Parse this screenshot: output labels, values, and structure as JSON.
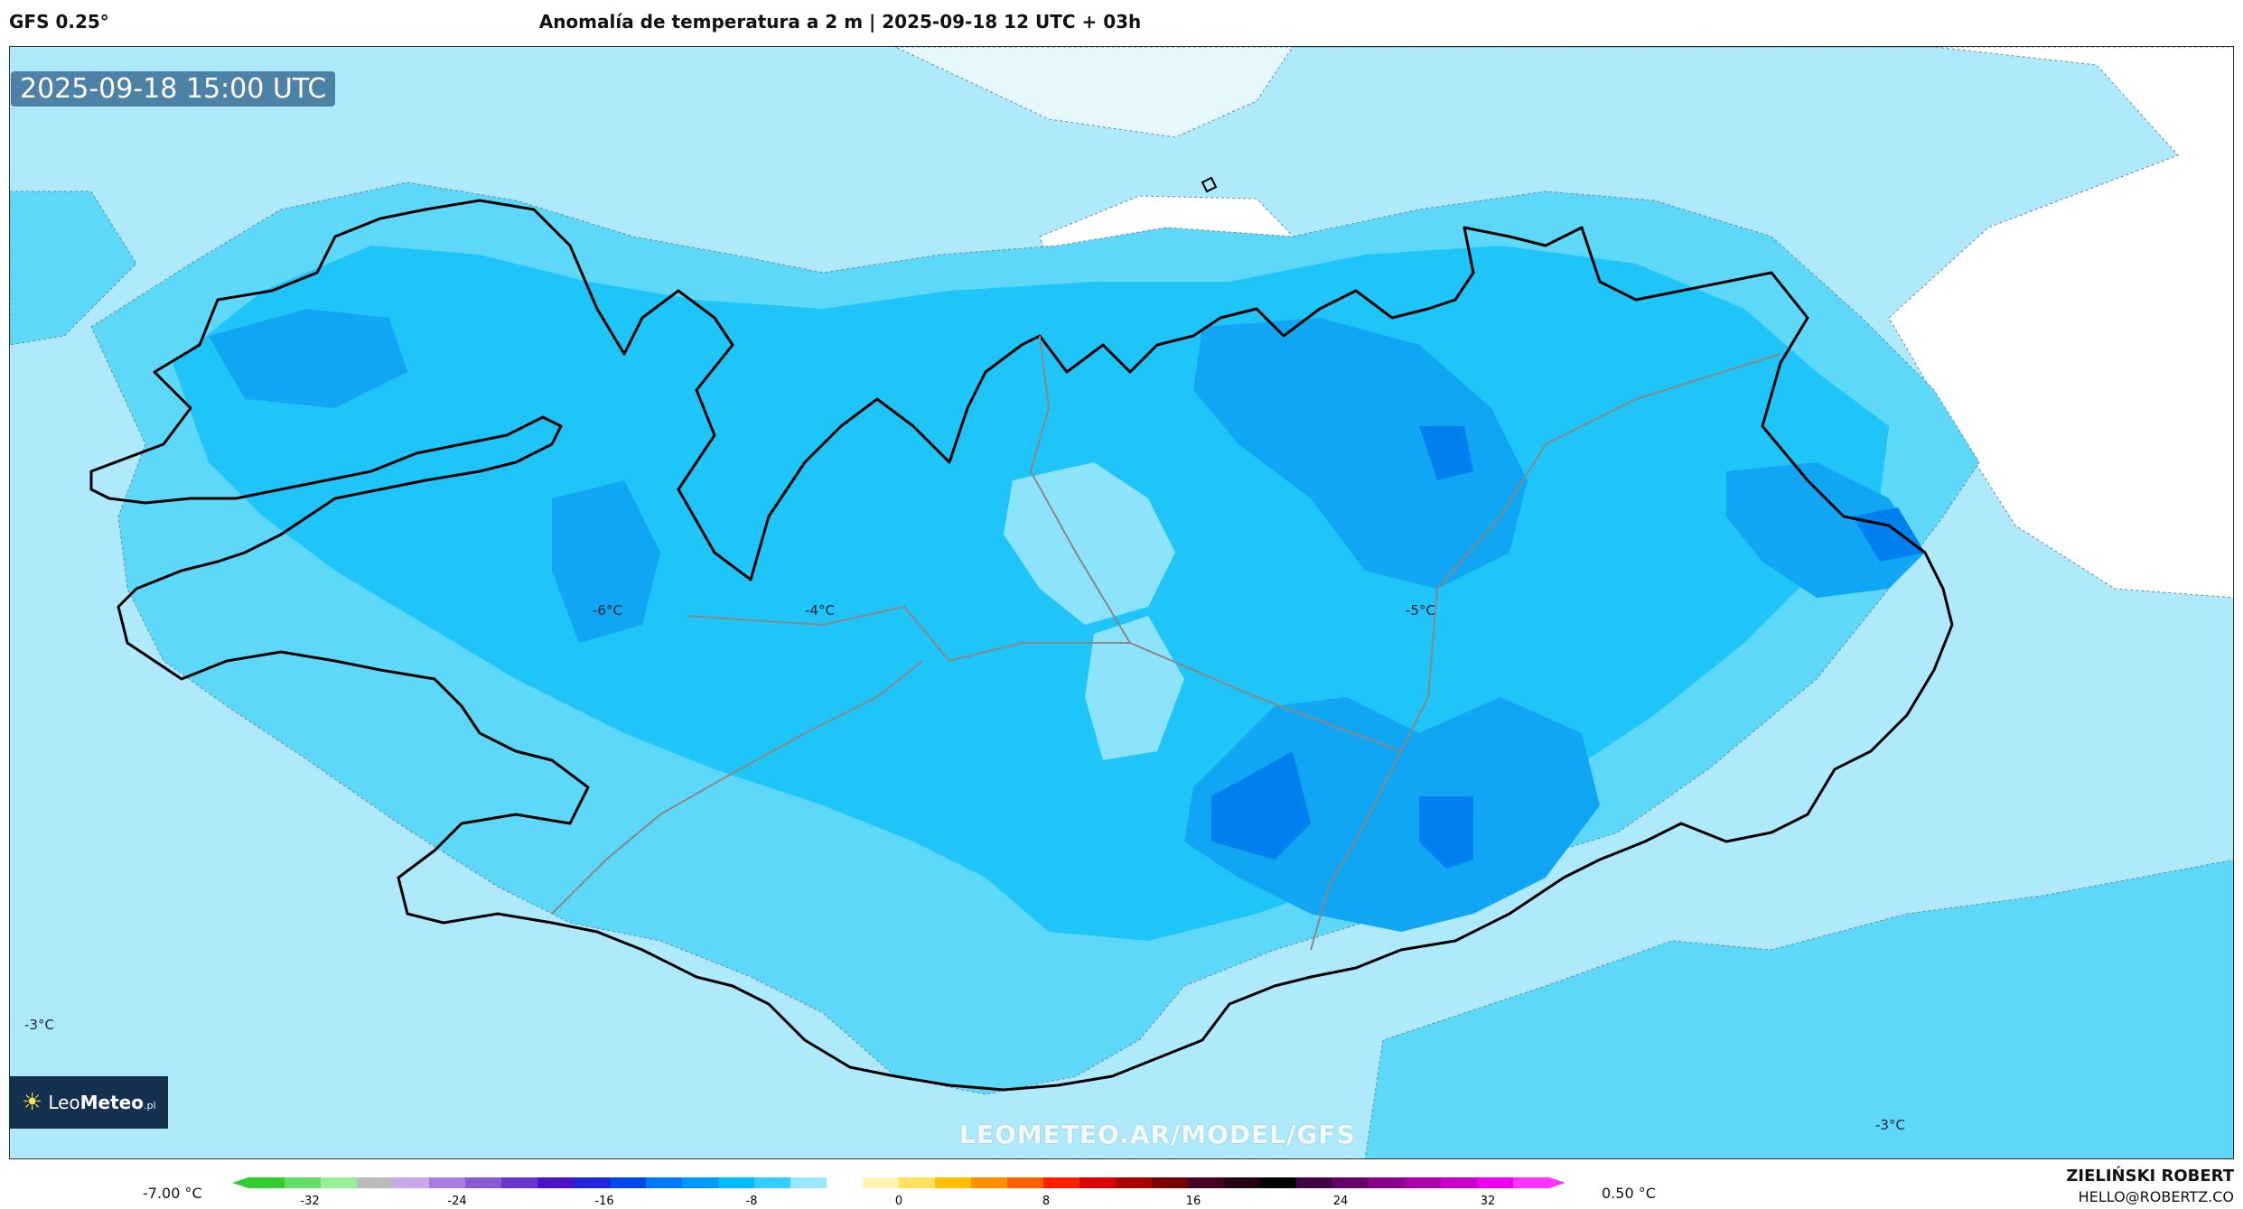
{
  "header": {
    "model": "GFS 0.25°",
    "title": "Anomalía de temperatura a 2 m | 2025-09-18 12 UTC + 03h"
  },
  "map": {
    "timestamp": "2025-09-18 15:00 UTC",
    "labels": [
      "-6°C",
      "-4°C",
      "-5°C",
      "-3°C",
      "-3°C"
    ],
    "watermark": "LEOMETEO.AR/MODEL/GFS",
    "logo": {
      "prefix": "Leo",
      "name": "Meteo",
      "suffix": ".pl"
    }
  },
  "colorbar": {
    "min_label": "-7.00 °C",
    "max_label": "0.50 °C",
    "ticks": [
      "-32",
      "-24",
      "-16",
      "-8",
      "0",
      "8",
      "16",
      "24",
      "32"
    ],
    "colors": [
      "#33cc33",
      "#66dd66",
      "#99ee99",
      "#bbbbbb",
      "#c8a8e8",
      "#a77ddd",
      "#8a5ad4",
      "#6a35cc",
      "#4a12c4",
      "#2222dd",
      "#0044ee",
      "#0077ff",
      "#0099ff",
      "#00bbff",
      "#33ccff",
      "#99e8ff",
      "#ffffff",
      "#fff5b0",
      "#ffe060",
      "#ffc000",
      "#ff9000",
      "#ff6000",
      "#ff2000",
      "#dd0000",
      "#aa0000",
      "#770000",
      "#440022",
      "#220011",
      "#000000",
      "#440044",
      "#660066",
      "#880088",
      "#aa00aa",
      "#cc00cc",
      "#ee00ee",
      "#ff33ff"
    ]
  },
  "credits": {
    "author": "ZIELIŃSKI ROBERT",
    "email": "HELLO@ROBERTZ.CO"
  }
}
